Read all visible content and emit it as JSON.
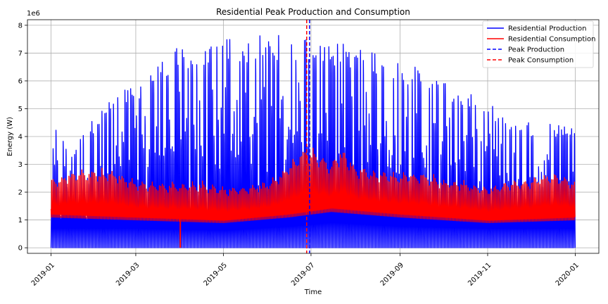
{
  "chart_data": {
    "type": "line",
    "title": "Residential Peak Production and Consumption",
    "xlabel": "Time",
    "ylabel": "Energy (W)",
    "y_scale_label": "1e6",
    "x_range": [
      "2019-01-01",
      "2020-01-01"
    ],
    "ylim": [
      -200000,
      8200000
    ],
    "x_ticks": [
      "2019-01",
      "2019-03",
      "2019-05",
      "2019-07",
      "2019-09",
      "2019-11",
      "2020-01"
    ],
    "y_ticks": [
      {
        "value": 0,
        "label": "0"
      },
      {
        "value": 1000000,
        "label": "1"
      },
      {
        "value": 2000000,
        "label": "2"
      },
      {
        "value": 3000000,
        "label": "3"
      },
      {
        "value": 4000000,
        "label": "4"
      },
      {
        "value": 5000000,
        "label": "5"
      },
      {
        "value": 6000000,
        "label": "6"
      },
      {
        "value": 7000000,
        "label": "7"
      },
      {
        "value": 8000000,
        "label": "8"
      }
    ],
    "grid": true,
    "legend_position": "top-right",
    "series": [
      {
        "name": "Residential Production",
        "color": "#0000ff",
        "style": "solid",
        "daily_peak_envelope": {
          "x": [
            "2019-01-01",
            "2019-01-15",
            "2019-02-01",
            "2019-02-15",
            "2019-03-01",
            "2019-03-15",
            "2019-04-01",
            "2019-04-15",
            "2019-05-01",
            "2019-05-15",
            "2019-06-01",
            "2019-06-15",
            "2019-07-01",
            "2019-07-15",
            "2019-08-01",
            "2019-08-15",
            "2019-09-01",
            "2019-09-15",
            "2019-10-01",
            "2019-10-15",
            "2019-11-01",
            "2019-11-15",
            "2019-12-01",
            "2019-12-15",
            "2019-12-31"
          ],
          "y": [
            4500000,
            3500000,
            4800000,
            5500000,
            6000000,
            6600000,
            7300000,
            7000000,
            7600000,
            7500000,
            7700000,
            7600000,
            7600000,
            7400000,
            7300000,
            7100000,
            6800000,
            6400000,
            6000000,
            5600000,
            5300000,
            4600000,
            4500000,
            4500000,
            4500000
          ]
        },
        "night_baseline": {
          "x": [
            "2019-01-01",
            "2019-03-01",
            "2019-05-01",
            "2019-06-15",
            "2019-07-15",
            "2019-09-01",
            "2019-11-01",
            "2019-12-31"
          ],
          "y": [
            1000000,
            1000000,
            900000,
            1100000,
            1300000,
            1100000,
            1000000,
            1000000
          ]
        }
      },
      {
        "name": "Residential Consumption",
        "color": "#ff0000",
        "style": "solid",
        "daily_peak_envelope": {
          "x": [
            "2019-01-01",
            "2019-01-15",
            "2019-02-01",
            "2019-02-15",
            "2019-03-01",
            "2019-03-15",
            "2019-04-01",
            "2019-04-15",
            "2019-05-01",
            "2019-05-15",
            "2019-06-01",
            "2019-06-15",
            "2019-06-28",
            "2019-07-15",
            "2019-07-22",
            "2019-08-01",
            "2019-08-15",
            "2019-09-01",
            "2019-09-15",
            "2019-10-01",
            "2019-10-15",
            "2019-11-01",
            "2019-11-15",
            "2019-12-01",
            "2019-12-15",
            "2019-12-31"
          ],
          "y": [
            2600000,
            2900000,
            3000000,
            2900000,
            2500000,
            2500000,
            2400000,
            2500000,
            2300000,
            2300000,
            2500000,
            3200000,
            3900000,
            3200000,
            3800000,
            3100000,
            2900000,
            2800000,
            2900000,
            2600000,
            2500000,
            2300000,
            2500000,
            2600000,
            2900000,
            2500000
          ]
        },
        "daily_min_envelope": {
          "x": [
            "2019-01-01",
            "2019-03-01",
            "2019-05-01",
            "2019-06-15",
            "2019-07-15",
            "2019-09-01",
            "2019-11-01",
            "2019-12-31"
          ],
          "y": [
            1100000,
            1000000,
            900000,
            1100000,
            1300000,
            1100000,
            900000,
            1000000
          ]
        }
      },
      {
        "name": "Peak Production",
        "color": "#0000ff",
        "style": "dashed",
        "x_value": "2019-06-30"
      },
      {
        "name": "Peak Consumption",
        "color": "#ff0000",
        "style": "dashed",
        "x_value": "2019-06-28"
      }
    ]
  }
}
